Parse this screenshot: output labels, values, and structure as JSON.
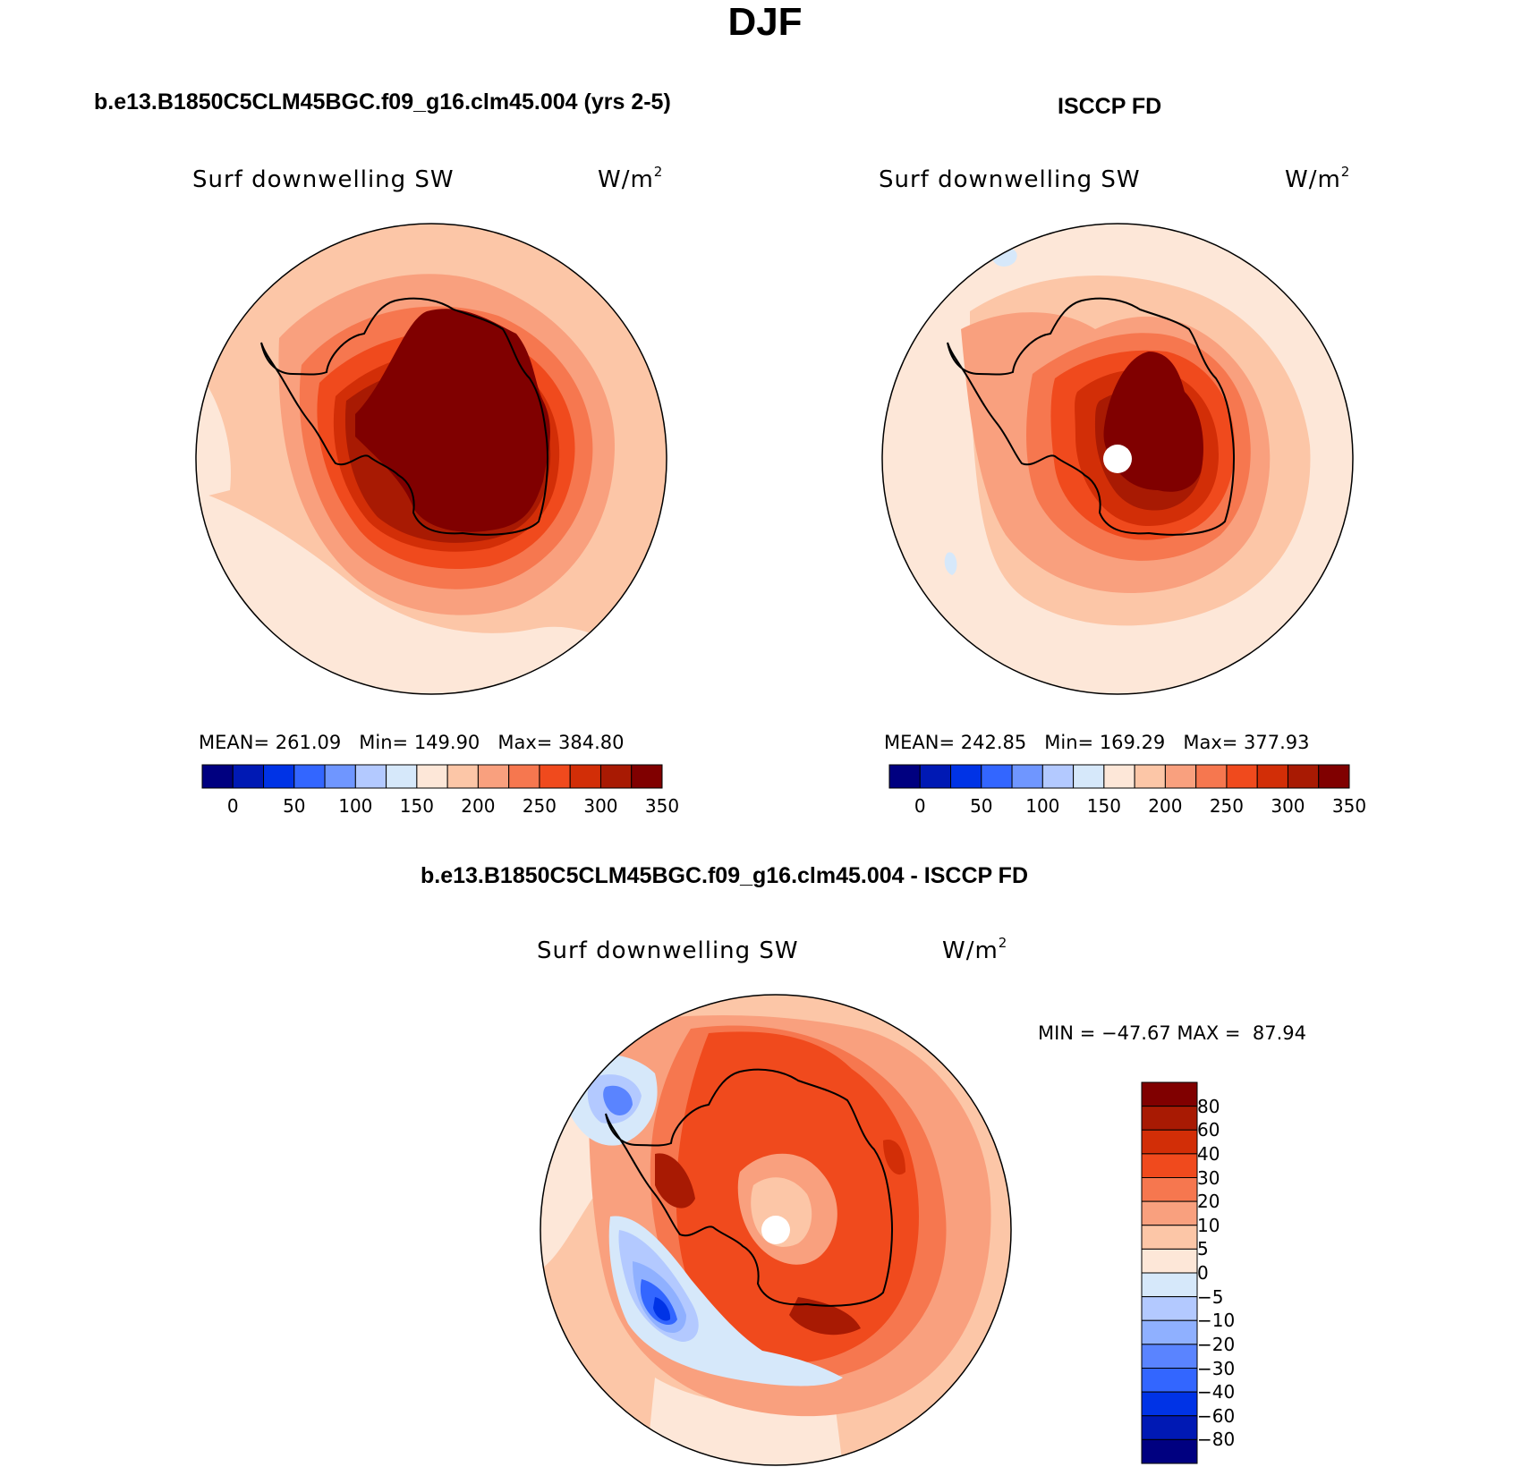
{
  "main_title": "DJF",
  "panels": [
    {
      "id": "model",
      "case_title": "b.e13.B1850C5CLM45BGC.f09_g16.clm45.004 (yrs 2-5)",
      "variable": "Surf downwelling SW",
      "units_base": "W/m",
      "units_exp": "2",
      "stats": {
        "mean_label": "MEAN=",
        "mean": "261.09",
        "min_label": "Min=",
        "min": "149.90",
        "max_label": "Max=",
        "max": "384.80"
      },
      "colorbar_ticks": [
        "0",
        "50",
        "100",
        "150",
        "200",
        "250",
        "300",
        "350"
      ]
    },
    {
      "id": "obs",
      "case_title": "ISCCP FD",
      "variable": "Surf downwelling SW",
      "units_base": "W/m",
      "units_exp": "2",
      "stats": {
        "mean_label": "MEAN=",
        "mean": "242.85",
        "min_label": "Min=",
        "min": "169.29",
        "max_label": "Max=",
        "max": "377.93"
      },
      "colorbar_ticks": [
        "0",
        "50",
        "100",
        "150",
        "200",
        "250",
        "300",
        "350"
      ]
    },
    {
      "id": "diff",
      "case_title": "b.e13.B1850C5CLM45BGC.f09_g16.clm45.004 - ISCCP FD",
      "variable": "Surf downwelling SW",
      "units_base": "W/m",
      "units_exp": "2",
      "stats": {
        "min_label": "MIN =",
        "min": "−47.67",
        "max_label": "MAX =",
        "max": "87.94"
      },
      "colorbar_ticks": [
        "80",
        "60",
        "40",
        "30",
        "20",
        "10",
        "5",
        "0",
        "−5",
        "−10",
        "−20",
        "−30",
        "−40",
        "−60",
        "−80"
      ]
    }
  ],
  "colors": {
    "field_scale": [
      "#000080",
      "#0019b4",
      "#0033e6",
      "#3366ff",
      "#6f96ff",
      "#b3c9ff",
      "#d6e8fa",
      "#fde7d8",
      "#fcc6a7",
      "#f9a07e",
      "#f6774f",
      "#f04a1d",
      "#d22e07",
      "#a81a03",
      "#800000"
    ],
    "diff_scale": [
      "#800000",
      "#a81a03",
      "#d22e07",
      "#f04a1d",
      "#f6774f",
      "#f9a07e",
      "#fcc6a7",
      "#fde7d8",
      "#d6e8fa",
      "#b3c9ff",
      "#8fb0ff",
      "#5a84ff",
      "#3366ff",
      "#0033e6",
      "#0019b4",
      "#000080"
    ]
  }
}
